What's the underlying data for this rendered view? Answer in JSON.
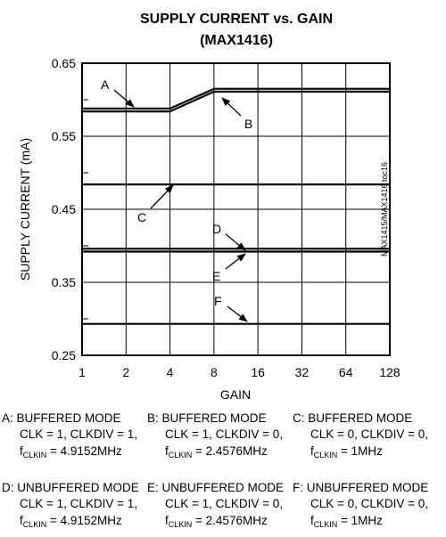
{
  "chart_data": {
    "type": "line",
    "title_line1": "SUPPLY CURRENT vs. GAIN",
    "title_line2": "(MAX1416)",
    "xlabel": "GAIN",
    "ylabel": "SUPPLY CURRENT (mA)",
    "x_scale": "log2",
    "categories": [
      "1",
      "2",
      "4",
      "8",
      "16",
      "32",
      "64",
      "128"
    ],
    "ylim": [
      0.25,
      0.65
    ],
    "ytick_labels": [
      "0.65",
      "0.55",
      "0.45",
      "0.35",
      "0.25"
    ],
    "yticks": [
      0.65,
      0.55,
      0.45,
      0.35,
      0.25
    ],
    "grid": true,
    "series": [
      {
        "name": "A",
        "x": [
          1,
          4,
          8,
          128
        ],
        "values": [
          0.586,
          0.586,
          0.613,
          0.613
        ]
      },
      {
        "name": "B",
        "x": [
          1,
          4,
          8,
          128
        ],
        "values": [
          0.586,
          0.586,
          0.613,
          0.613
        ]
      },
      {
        "name": "C",
        "x": [
          1,
          128
        ],
        "values": [
          0.484,
          0.484
        ]
      },
      {
        "name": "D",
        "x": [
          1,
          128
        ],
        "values": [
          0.394,
          0.394
        ]
      },
      {
        "name": "E",
        "x": [
          1,
          128
        ],
        "values": [
          0.394,
          0.394
        ]
      },
      {
        "name": "F",
        "x": [
          1,
          128
        ],
        "values": [
          0.293,
          0.293
        ]
      }
    ],
    "side_label": "MAX1415/MAX1416 toc16",
    "legend": [
      {
        "letter": "A",
        "mode": "A: BUFFERED MODE",
        "clk": "CLK = 1, CLKDIV = 1,",
        "f_pre": "f",
        "f_sub": "CLKIN",
        "f_val": " = 4.9152MHz"
      },
      {
        "letter": "B",
        "mode": "B: BUFFERED MODE",
        "clk": "CLK = 1, CLKDIV = 0,",
        "f_pre": "f",
        "f_sub": "CLKIN",
        "f_val": " = 2.4576MHz"
      },
      {
        "letter": "C",
        "mode": "C: BUFFERED MODE",
        "clk": "CLK = 0, CLKDIV = 0,",
        "f_pre": "f",
        "f_sub": "CLKIN",
        "f_val": " = 1MHz"
      },
      {
        "letter": "D",
        "mode": "D: UNBUFFERED MODE",
        "clk": "CLK = 1, CLKDIV = 1,",
        "f_pre": "f",
        "f_sub": "CLKIN",
        "f_val": " = 4.9152MHz"
      },
      {
        "letter": "E",
        "mode": "E: UNBUFFERED MODE",
        "clk": "CLK = 1, CLKDIV = 0,",
        "f_pre": "f",
        "f_sub": "CLKIN",
        "f_val": " = 2.4576MHz"
      },
      {
        "letter": "F",
        "mode": "F: UNBUFFERED MODE",
        "clk": "CLK = 0, CLKDIV = 0,",
        "f_pre": "f",
        "f_sub": "CLKIN",
        "f_val": " = 1MHz"
      }
    ]
  }
}
